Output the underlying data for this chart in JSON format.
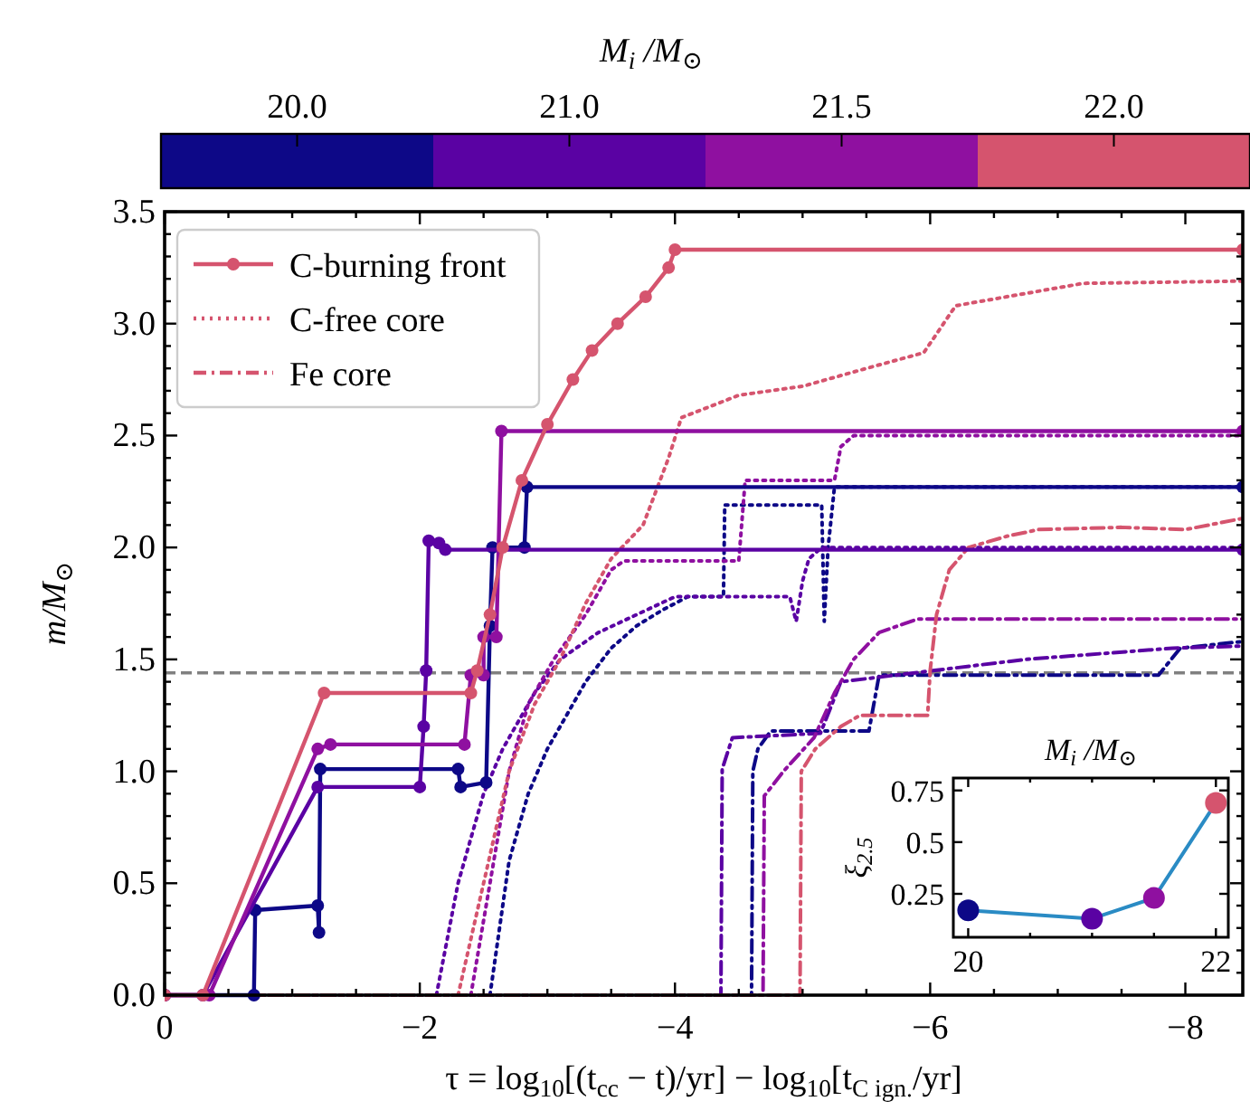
{
  "chart_data": [
    {
      "type": "line",
      "clabel": "M$_{i}$ /M$_{⊙}$",
      "annotations": [
        "20.0",
        "21.0",
        "21.5",
        "22.0"
      ],
      "xlabel": "τ = log$_{10}$[(t$_{cc}$ − t)/yr] − log$_{10}$[t$_{C ign.}$/yr]",
      "ylabel": "m/M$_{⊙}$",
      "xlim": [
        0,
        -8.45
      ],
      "ylim": [
        0,
        3.5
      ],
      "xticks": [
        0,
        {
          "value": -0.5,
          "label": null
        },
        {
          "value": -1,
          "label": null
        },
        {
          "value": -1.5,
          "label": null
        },
        {
          "value": -2,
          "label": "−2"
        },
        {
          "value": -2.5,
          "label": null
        },
        {
          "value": -3,
          "label": null
        },
        {
          "value": -3.5,
          "label": null
        },
        {
          "value": -4,
          "label": "−4"
        },
        {
          "value": -4.5,
          "label": null
        },
        {
          "value": -5,
          "label": null
        },
        {
          "value": -5.5,
          "label": null
        },
        {
          "value": -6,
          "label": "−6"
        },
        {
          "value": -6.5,
          "label": null
        },
        {
          "value": -7,
          "label": null
        },
        {
          "value": -7.5,
          "label": null
        },
        {
          "value": -8,
          "label": "−8"
        }
      ],
      "yticks": [
        {
          "value": 0,
          "label": "0.0"
        },
        {
          "value": 0.1,
          "label": null
        },
        {
          "value": 0.2,
          "label": null
        },
        {
          "value": 0.3,
          "label": null
        },
        {
          "value": 0.4,
          "label": null
        },
        {
          "value": 0.5,
          "label": "0.5"
        },
        {
          "value": 0.6,
          "label": null
        },
        {
          "value": 0.7,
          "label": null
        },
        {
          "value": 0.8,
          "label": null
        },
        {
          "value": 0.9,
          "label": null
        },
        {
          "value": 1,
          "label": "1.0"
        },
        {
          "value": 1.1,
          "label": null
        },
        {
          "value": 1.2,
          "label": null
        },
        {
          "value": 1.3,
          "label": null
        },
        {
          "value": 1.4,
          "label": null
        },
        {
          "value": 1.5,
          "label": "1.5"
        },
        {
          "value": 1.6,
          "label": null
        },
        {
          "value": 1.7,
          "label": null
        },
        {
          "value": 1.8,
          "label": null
        },
        {
          "value": 1.9,
          "label": null
        },
        {
          "value": 2,
          "label": "2.0"
        },
        {
          "value": 2.1,
          "label": null
        },
        {
          "value": 2.2,
          "label": null
        },
        {
          "value": 2.3,
          "label": null
        },
        {
          "value": 2.4,
          "label": null
        },
        {
          "value": 2.5,
          "label": "2.5"
        },
        {
          "value": 2.6,
          "label": null
        },
        {
          "value": 2.7,
          "label": null
        },
        {
          "value": 2.8,
          "label": null
        },
        {
          "value": 2.9,
          "label": null
        },
        {
          "value": 3,
          "label": "3.0"
        },
        {
          "value": 3.1,
          "label": null
        },
        {
          "value": 3.2,
          "label": null
        },
        {
          "value": 3.3,
          "label": null
        },
        {
          "value": 3.4,
          "label": null
        },
        {
          "value": 3.5,
          "label": "3.5"
        }
      ],
      "legend": "top left",
      "ref_lines": [
        {
          "axis": "y",
          "value": 1.44,
          "color": "#808080",
          "line_style": "dashed"
        }
      ],
      "series": [
        {
          "color": "#0d0887",
          "marker": "none",
          "line_style": "dotted",
          "x": [
            -2.55,
            -2.7,
            -2.85,
            -3.0,
            -3.15,
            -3.3,
            -3.5,
            -3.7,
            -3.9,
            -4.1,
            -4.38,
            -4.39,
            -5.15,
            -5.17,
            -5.2,
            -5.25,
            -8.45
          ],
          "values": [
            0,
            0.6,
            0.9,
            1.1,
            1.25,
            1.4,
            1.55,
            1.65,
            1.72,
            1.78,
            1.78,
            2.19,
            2.19,
            1.67,
            2.0,
            2.27,
            2.27
          ]
        },
        {
          "color": "#5a02a3",
          "marker": "none",
          "line_style": "dotted",
          "x": [
            -2.13,
            -2.3,
            -2.5,
            -2.65,
            -2.9,
            -3.1,
            -3.4,
            -3.7,
            -4.0,
            -4.9,
            -4.95,
            -5.0,
            -5.05,
            -5.15,
            -8.45
          ],
          "values": [
            0,
            0.5,
            0.9,
            1.1,
            1.35,
            1.5,
            1.62,
            1.7,
            1.78,
            1.78,
            1.67,
            1.85,
            1.95,
            2.0,
            2.0
          ]
        },
        {
          "color": "#8f10a0",
          "marker": "none",
          "line_style": "dotted",
          "x": [
            -2.4,
            -2.55,
            -2.7,
            -2.85,
            -3.05,
            -3.3,
            -3.5,
            -3.6,
            -4.5,
            -4.55,
            -5.25,
            -5.3,
            -5.4,
            -8.45
          ],
          "values": [
            0,
            0.5,
            1.0,
            1.3,
            1.5,
            1.7,
            1.9,
            1.94,
            1.94,
            2.3,
            2.3,
            2.45,
            2.5,
            2.5
          ]
        },
        {
          "name": "C-free core",
          "color": "#d5546e",
          "marker": "none",
          "line_style": "dotted",
          "x": [
            -2.3,
            -2.5,
            -2.7,
            -2.9,
            -3.1,
            -3.3,
            -3.5,
            -3.75,
            -3.95,
            -4.05,
            -4.5,
            -5.0,
            -5.5,
            -5.95,
            -6.2,
            -6.6,
            -7.2,
            -8.45
          ],
          "values": [
            0,
            0.5,
            1.0,
            1.3,
            1.5,
            1.75,
            1.95,
            2.1,
            2.4,
            2.58,
            2.68,
            2.72,
            2.8,
            2.87,
            3.08,
            3.12,
            3.18,
            3.19
          ]
        },
        {
          "color": "#0d0887",
          "marker": "none",
          "line_style": "dashdot",
          "x": [
            0,
            -4.6,
            -4.61,
            -4.65,
            -4.75,
            -5.52,
            -5.6,
            -7.79,
            -7.96,
            -8.45
          ],
          "values": [
            0,
            0,
            1.0,
            1.1,
            1.18,
            1.18,
            1.43,
            1.43,
            1.55,
            1.58
          ]
        },
        {
          "color": "#5a02a3",
          "marker": "none",
          "line_style": "dashdot",
          "x": [
            0,
            -4.36,
            -4.37,
            -4.45,
            -5.14,
            -5.3,
            -6.75,
            -7.9,
            -8.45
          ],
          "values": [
            0,
            0,
            1.01,
            1.15,
            1.17,
            1.4,
            1.5,
            1.55,
            1.56
          ]
        },
        {
          "color": "#8f10a0",
          "marker": "none",
          "line_style": "dashdot",
          "x": [
            0,
            -4.69,
            -4.7,
            -4.85,
            -5.09,
            -5.25,
            -5.4,
            -5.6,
            -5.9,
            -8.45
          ],
          "values": [
            0,
            0,
            0.89,
            1.0,
            1.15,
            1.35,
            1.5,
            1.62,
            1.68,
            1.68
          ]
        },
        {
          "name": "Fe core",
          "color": "#d5546e",
          "marker": "none",
          "line_style": "dashdot",
          "x": [
            0,
            -4.98,
            -4.99,
            -5.1,
            -5.3,
            -5.45,
            -5.98,
            -6.0,
            -6.05,
            -6.15,
            -6.3,
            -6.6,
            -6.85,
            -7.5,
            -8.0,
            -8.45
          ],
          "values": [
            0,
            0,
            1.0,
            1.1,
            1.2,
            1.25,
            1.25,
            1.45,
            1.7,
            1.9,
            2.0,
            2.05,
            2.08,
            2.09,
            2.08,
            2.13
          ]
        },
        {
          "color": "#0d0887",
          "marker": "circle",
          "line_style": "solid",
          "x": [
            0,
            -0.7,
            -0.71,
            -1.2,
            -1.21,
            -1.22,
            -2.3,
            -2.32,
            -2.52,
            -2.55,
            -2.57,
            -2.82,
            -2.84,
            -8.45
          ],
          "values": [
            0,
            0,
            0.38,
            0.4,
            0.28,
            1.01,
            1.01,
            0.93,
            0.95,
            1.65,
            2.0,
            2.0,
            2.27,
            2.27
          ]
        },
        {
          "color": "#5a02a3",
          "marker": "circle",
          "line_style": "solid",
          "x": [
            0,
            -0.3,
            -1.2,
            -2.0,
            -2.03,
            -2.05,
            -2.07,
            -2.15,
            -2.2,
            -8.45
          ],
          "values": [
            0,
            0,
            0.93,
            0.93,
            1.2,
            1.45,
            2.03,
            2.02,
            1.99,
            1.99
          ]
        },
        {
          "color": "#8f10a0",
          "marker": "circle",
          "line_style": "solid",
          "x": [
            0,
            -0.35,
            -1.2,
            -1.3,
            -2.35,
            -2.4,
            -2.5,
            -2.5,
            -2.6,
            -2.64,
            -8.45
          ],
          "values": [
            0,
            0,
            1.1,
            1.12,
            1.12,
            1.43,
            1.43,
            1.6,
            1.6,
            2.52,
            2.52
          ]
        },
        {
          "name": "C-burning front",
          "color": "#d5546e",
          "marker": "circle",
          "line_style": "solid",
          "x": [
            0,
            -0.3,
            -1.25,
            -2.4,
            -2.45,
            -2.55,
            -2.65,
            -2.8,
            -3.0,
            -3.2,
            -3.35,
            -3.55,
            -3.77,
            -3.95,
            -4.0,
            -8.45
          ],
          "values": [
            0,
            0,
            1.35,
            1.35,
            1.45,
            1.7,
            2.0,
            2.3,
            2.55,
            2.75,
            2.88,
            3.0,
            3.12,
            3.25,
            3.33,
            3.33
          ]
        }
      ]
    },
    {
      "type": "line",
      "title": "M$_{i}$ /M$_{⊙}$",
      "ylabel": "ξ$_{2.5}$",
      "xlim": [
        19.88,
        22.1
      ],
      "ylim": [
        0.04,
        0.81
      ],
      "xticks": [
        20,
        {
          "value": 20.5,
          "label": null
        },
        {
          "value": 21,
          "label": null
        },
        {
          "value": 21.5,
          "label": null
        },
        22
      ],
      "yticks": [
        0.25,
        0.5,
        0.75
      ],
      "series": [
        {
          "color": "#2a8bc4",
          "marker": "circle",
          "line_style": "solid",
          "x": [
            20,
            21,
            21.5,
            22
          ],
          "values": [
            0.17,
            0.13,
            0.23,
            0.69
          ],
          "colors": [
            "#0d0887",
            "#5a02a3",
            "#8f10a0",
            "#d5546e"
          ]
        }
      ]
    }
  ]
}
